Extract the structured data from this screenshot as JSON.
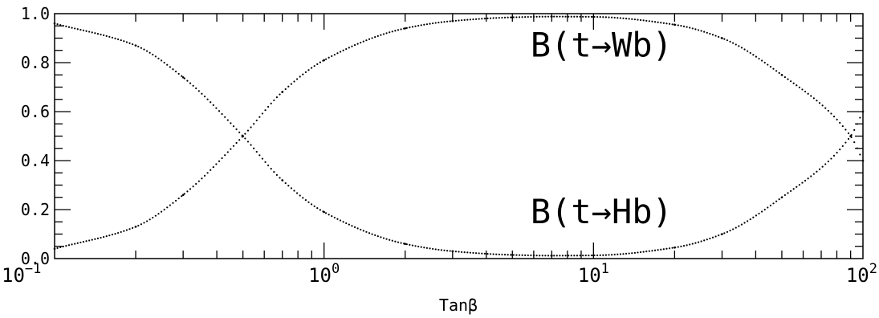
{
  "chart_data": {
    "type": "scatter",
    "title": "",
    "xlabel": "Tanβ",
    "ylabel": "",
    "xscale": "log",
    "xlim": [
      0.1,
      100
    ],
    "ylim": [
      0.0,
      1.0
    ],
    "grid": false,
    "legend": "none",
    "x_tick_labels": [
      {
        "base": "10",
        "exp": "−1",
        "value": 0.1
      },
      {
        "base": "10",
        "exp": "0",
        "value": 1
      },
      {
        "base": "10",
        "exp": "1",
        "value": 10
      },
      {
        "base": "10",
        "exp": "2",
        "value": 100
      }
    ],
    "y_tick_labels": [
      "0.0",
      "0.2",
      "0.4",
      "0.6",
      "0.8",
      "1.0"
    ],
    "y_tick_values": [
      0.0,
      0.2,
      0.4,
      0.6,
      0.8,
      1.0
    ],
    "annotations": [
      {
        "text": "B(t→Wb)",
        "x": 10,
        "y": 0.87
      },
      {
        "text": "B(t→Hb)",
        "x": 10,
        "y": 0.19
      }
    ],
    "series": [
      {
        "x": [
          0.1,
          0.2,
          0.3,
          0.5,
          0.7,
          1.0,
          2.0,
          3.0,
          5.0,
          7.0,
          10.0,
          20.0,
          30.0,
          50.0,
          90.0,
          100.0
        ],
        "y": [
          0.96,
          0.87,
          0.74,
          0.5,
          0.32,
          0.19,
          0.06,
          0.03,
          0.015,
          0.012,
          0.013,
          0.045,
          0.1,
          0.25,
          0.5,
          0.6
        ]
      },
      {
        "x": [
          0.1,
          0.2,
          0.3,
          0.5,
          0.7,
          1.0,
          2.0,
          3.0,
          5.0,
          7.0,
          10.0,
          20.0,
          30.0,
          50.0,
          90.0,
          100.0
        ],
        "y": [
          0.04,
          0.13,
          0.26,
          0.5,
          0.68,
          0.81,
          0.94,
          0.97,
          0.985,
          0.988,
          0.987,
          0.955,
          0.9,
          0.75,
          0.5,
          0.4
        ]
      }
    ]
  }
}
